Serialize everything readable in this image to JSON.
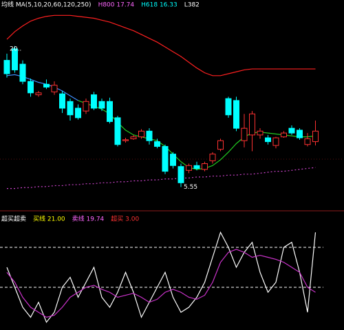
{
  "chart_data": [
    {
      "type": "candlestick",
      "header": [
        {
          "text": "均线 MA(5,10,20,60,120,250)",
          "color": "#ffffff"
        },
        {
          "text": "H800 17.74",
          "color": "#ff66ff"
        },
        {
          "text": "H618 16.33",
          "color": "#00ffff"
        },
        {
          "text": "L382",
          "color": "#ffffff"
        }
      ],
      "annotations": [
        {
          "text": "20..",
          "x": 0,
          "y": 20.0
        },
        {
          "text": "5.55",
          "x": 22,
          "y": 5.55
        }
      ],
      "ylim": [
        3.5,
        24.1
      ],
      "up_color": "#ff3232",
      "down_color": "#00ffff",
      "open": [
        18.8,
        20.0,
        18.4,
        16.6,
        15.2,
        16.3,
        15.5,
        15.3,
        14.5,
        13.8,
        13.5,
        15.2,
        14.5,
        14.5,
        12.8,
        10.4,
        10.6,
        10.8,
        11.4,
        10.3,
        9.8,
        9.0,
        7.7,
        7.3,
        7.8,
        7.4,
        8.3,
        9.5,
        14.8,
        14.6,
        10.4,
        11.0,
        11.0,
        10.7,
        9.9,
        10.8,
        11.7,
        11.5,
        10.0,
        10.3
      ],
      "high": [
        19.5,
        20.3,
        18.8,
        16.9,
        15.6,
        16.8,
        16.6,
        15.6,
        14.8,
        14.2,
        14.8,
        15.5,
        14.8,
        14.9,
        13.0,
        10.7,
        11.0,
        11.6,
        11.7,
        10.6,
        10.0,
        9.2,
        8.0,
        8.0,
        8.2,
        8.2,
        9.2,
        10.6,
        15.0,
        15.0,
        13.2,
        13.5,
        11.7,
        11.0,
        10.8,
        11.4,
        12.0,
        11.7,
        11.2,
        12.5
      ],
      "low": [
        17.0,
        17.5,
        16.3,
        15.0,
        15.0,
        15.8,
        15.2,
        13.3,
        12.5,
        12.6,
        13.2,
        13.6,
        13.5,
        12.2,
        9.8,
        10.2,
        10.5,
        10.6,
        10.0,
        9.6,
        6.9,
        7.5,
        5.55,
        7.0,
        7.3,
        7.2,
        8.0,
        9.3,
        12.8,
        11.4,
        9.7,
        9.3,
        10.6,
        10.0,
        9.6,
        10.7,
        11.0,
        10.5,
        9.8,
        9.9
      ],
      "close": [
        17.4,
        17.8,
        16.6,
        15.4,
        15.4,
        16.0,
        16.2,
        13.8,
        13.1,
        12.8,
        14.5,
        13.8,
        13.8,
        12.4,
        10.0,
        10.5,
        10.8,
        11.4,
        10.4,
        9.8,
        7.2,
        7.8,
        6.0,
        7.8,
        7.5,
        8.0,
        9.0,
        10.4,
        13.1,
        11.7,
        11.7,
        13.2,
        11.4,
        10.3,
        10.7,
        11.2,
        11.2,
        10.7,
        10.6,
        11.4
      ],
      "series": [
        {
          "color": "#3f8fff",
          "values": [
            17.2,
            17.3,
            17.1,
            16.8,
            16.5,
            16.3,
            16.0,
            15.6,
            15.1,
            14.6,
            null,
            null,
            null,
            null,
            null,
            null,
            null,
            null,
            null,
            null,
            null,
            null,
            null,
            null,
            null,
            null,
            null,
            null,
            null,
            null,
            null,
            null,
            null,
            null,
            null,
            null,
            null,
            null,
            null,
            null
          ]
        },
        {
          "color": "#22cc22",
          "values": [
            null,
            null,
            null,
            null,
            null,
            null,
            null,
            null,
            null,
            14.6,
            14.3,
            14.0,
            13.7,
            13.2,
            12.3,
            11.5,
            11.0,
            10.8,
            10.6,
            10.4,
            9.8,
            9.0,
            8.2,
            7.6,
            7.4,
            7.5,
            7.8,
            8.4,
            9.2,
            10.1,
            10.8,
            11.2,
            11.3,
            11.2,
            11.1,
            11.0,
            10.9,
            10.8,
            10.8,
            10.9
          ]
        },
        {
          "color": "#ff2020",
          "values": [
            21.0,
            21.8,
            22.4,
            22.9,
            23.2,
            23.4,
            23.5,
            23.5,
            23.5,
            23.4,
            23.3,
            23.2,
            23.0,
            22.8,
            22.5,
            22.2,
            21.9,
            21.5,
            21.1,
            20.7,
            20.2,
            19.7,
            19.2,
            18.6,
            18.0,
            17.5,
            17.2,
            17.2,
            17.4,
            17.6,
            17.8,
            17.9,
            17.9,
            17.9,
            17.9,
            17.9,
            17.9,
            17.9,
            17.9,
            17.9
          ]
        },
        {
          "color": "#cc44cc",
          "dashed": true,
          "values": [
            5.4,
            5.4,
            5.5,
            5.5,
            5.6,
            5.6,
            5.7,
            5.7,
            5.8,
            5.8,
            5.9,
            5.9,
            6.0,
            6.0,
            6.1,
            6.1,
            6.2,
            6.2,
            6.3,
            6.3,
            6.4,
            6.4,
            6.5,
            6.5,
            6.6,
            6.6,
            6.7,
            6.7,
            6.8,
            6.8,
            6.9,
            6.9,
            7.0,
            7.1,
            7.2,
            7.2,
            7.3,
            7.4,
            7.5,
            7.6
          ]
        }
      ]
    },
    {
      "type": "line",
      "header": [
        {
          "text": "超买超卖",
          "color": "#ffffff"
        },
        {
          "text": "买线 21.00",
          "color": "#ffff00"
        },
        {
          "text": "卖线 19.74",
          "color": "#ff66ff"
        },
        {
          "text": "超买 3.00",
          "color": "#ff3232"
        }
      ],
      "ylim": [
        0,
        100
      ],
      "levels": [
        80,
        40
      ],
      "series": [
        {
          "color": "#ffffff",
          "values": [
            60,
            40,
            20,
            10,
            25,
            5,
            15,
            40,
            50,
            30,
            45,
            60,
            30,
            20,
            35,
            55,
            35,
            10,
            25,
            40,
            55,
            30,
            15,
            20,
            30,
            45,
            70,
            95,
            80,
            60,
            75,
            85,
            55,
            35,
            45,
            80,
            85,
            55,
            15,
            95
          ]
        },
        {
          "color": "#cc33cc",
          "values": [
            55,
            45,
            30,
            20,
            15,
            10,
            12,
            20,
            30,
            35,
            40,
            42,
            38,
            35,
            30,
            32,
            34,
            30,
            25,
            28,
            35,
            38,
            35,
            30,
            28,
            32,
            45,
            65,
            75,
            78,
            75,
            70,
            72,
            70,
            68,
            65,
            60,
            55,
            40,
            35
          ]
        }
      ]
    }
  ]
}
